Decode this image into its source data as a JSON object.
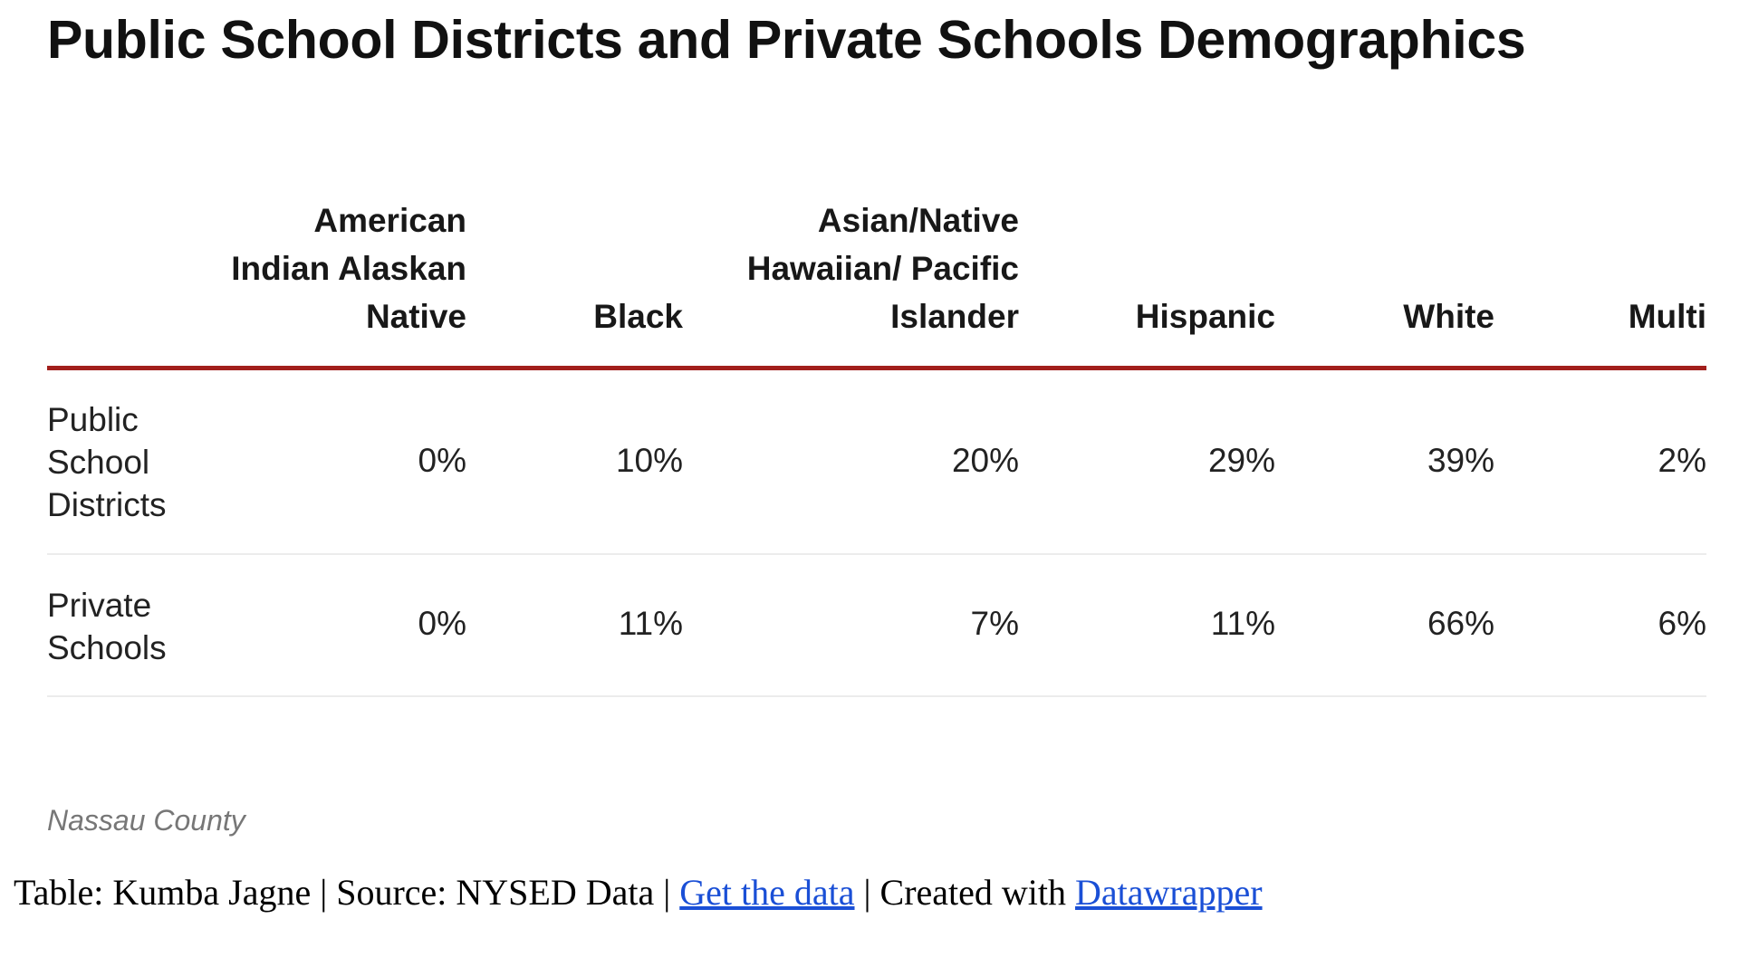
{
  "title": "Public School Districts and Private Schools Demographics",
  "columns": [
    "American Indian Alaskan Native",
    "Black",
    "Asian/Native Hawaiian/ Pacific Islander",
    "Hispanic",
    "White",
    "Multi"
  ],
  "rows": [
    {
      "label": "Public School Districts",
      "values": [
        "0%",
        "10%",
        "20%",
        "29%",
        "39%",
        "2%"
      ]
    },
    {
      "label": "Private Schools",
      "values": [
        "0%",
        "11%",
        "7%",
        "11%",
        "66%",
        "6%"
      ]
    }
  ],
  "note": "Nassau County",
  "footer": {
    "prefix": "Table: Kumba Jagne | Source: NYSED Data | ",
    "get_data": "Get the data",
    "mid": " | Created with ",
    "datawrapper": "Datawrapper"
  },
  "colors": {
    "rule": "#a21f1c",
    "link": "#1a4fd6"
  }
}
